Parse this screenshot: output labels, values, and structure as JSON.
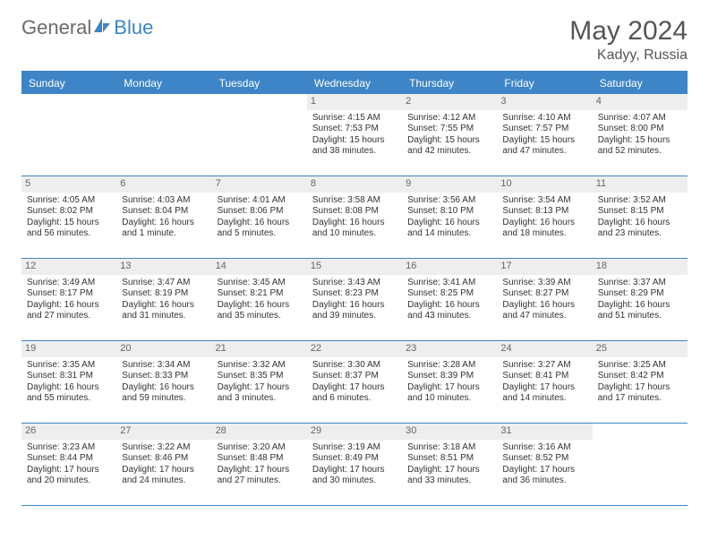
{
  "brand": {
    "general": "General",
    "blue": "Blue"
  },
  "title": "May 2024",
  "location": "Kadyy, Russia",
  "colors": {
    "accent": "#3d85c6",
    "header_text": "#ffffff",
    "daynum_bg": "#eeeeee",
    "daynum_text": "#666666",
    "body_text": "#333333",
    "title_text": "#555555",
    "page_bg": "#ffffff"
  },
  "typography": {
    "title_fontsize": 30,
    "subtitle_fontsize": 16,
    "dayhead_fontsize": 12,
    "cell_fontsize": 10
  },
  "dayNames": [
    "Sunday",
    "Monday",
    "Tuesday",
    "Wednesday",
    "Thursday",
    "Friday",
    "Saturday"
  ],
  "weeks": [
    [
      {
        "n": "",
        "sr": "",
        "ss": "",
        "dl": ""
      },
      {
        "n": "",
        "sr": "",
        "ss": "",
        "dl": ""
      },
      {
        "n": "",
        "sr": "",
        "ss": "",
        "dl": ""
      },
      {
        "n": "1",
        "sr": "4:15 AM",
        "ss": "7:53 PM",
        "dl": "15 hours and 38 minutes."
      },
      {
        "n": "2",
        "sr": "4:12 AM",
        "ss": "7:55 PM",
        "dl": "15 hours and 42 minutes."
      },
      {
        "n": "3",
        "sr": "4:10 AM",
        "ss": "7:57 PM",
        "dl": "15 hours and 47 minutes."
      },
      {
        "n": "4",
        "sr": "4:07 AM",
        "ss": "8:00 PM",
        "dl": "15 hours and 52 minutes."
      }
    ],
    [
      {
        "n": "5",
        "sr": "4:05 AM",
        "ss": "8:02 PM",
        "dl": "15 hours and 56 minutes."
      },
      {
        "n": "6",
        "sr": "4:03 AM",
        "ss": "8:04 PM",
        "dl": "16 hours and 1 minute."
      },
      {
        "n": "7",
        "sr": "4:01 AM",
        "ss": "8:06 PM",
        "dl": "16 hours and 5 minutes."
      },
      {
        "n": "8",
        "sr": "3:58 AM",
        "ss": "8:08 PM",
        "dl": "16 hours and 10 minutes."
      },
      {
        "n": "9",
        "sr": "3:56 AM",
        "ss": "8:10 PM",
        "dl": "16 hours and 14 minutes."
      },
      {
        "n": "10",
        "sr": "3:54 AM",
        "ss": "8:13 PM",
        "dl": "16 hours and 18 minutes."
      },
      {
        "n": "11",
        "sr": "3:52 AM",
        "ss": "8:15 PM",
        "dl": "16 hours and 23 minutes."
      }
    ],
    [
      {
        "n": "12",
        "sr": "3:49 AM",
        "ss": "8:17 PM",
        "dl": "16 hours and 27 minutes."
      },
      {
        "n": "13",
        "sr": "3:47 AM",
        "ss": "8:19 PM",
        "dl": "16 hours and 31 minutes."
      },
      {
        "n": "14",
        "sr": "3:45 AM",
        "ss": "8:21 PM",
        "dl": "16 hours and 35 minutes."
      },
      {
        "n": "15",
        "sr": "3:43 AM",
        "ss": "8:23 PM",
        "dl": "16 hours and 39 minutes."
      },
      {
        "n": "16",
        "sr": "3:41 AM",
        "ss": "8:25 PM",
        "dl": "16 hours and 43 minutes."
      },
      {
        "n": "17",
        "sr": "3:39 AM",
        "ss": "8:27 PM",
        "dl": "16 hours and 47 minutes."
      },
      {
        "n": "18",
        "sr": "3:37 AM",
        "ss": "8:29 PM",
        "dl": "16 hours and 51 minutes."
      }
    ],
    [
      {
        "n": "19",
        "sr": "3:35 AM",
        "ss": "8:31 PM",
        "dl": "16 hours and 55 minutes."
      },
      {
        "n": "20",
        "sr": "3:34 AM",
        "ss": "8:33 PM",
        "dl": "16 hours and 59 minutes."
      },
      {
        "n": "21",
        "sr": "3:32 AM",
        "ss": "8:35 PM",
        "dl": "17 hours and 3 minutes."
      },
      {
        "n": "22",
        "sr": "3:30 AM",
        "ss": "8:37 PM",
        "dl": "17 hours and 6 minutes."
      },
      {
        "n": "23",
        "sr": "3:28 AM",
        "ss": "8:39 PM",
        "dl": "17 hours and 10 minutes."
      },
      {
        "n": "24",
        "sr": "3:27 AM",
        "ss": "8:41 PM",
        "dl": "17 hours and 14 minutes."
      },
      {
        "n": "25",
        "sr": "3:25 AM",
        "ss": "8:42 PM",
        "dl": "17 hours and 17 minutes."
      }
    ],
    [
      {
        "n": "26",
        "sr": "3:23 AM",
        "ss": "8:44 PM",
        "dl": "17 hours and 20 minutes."
      },
      {
        "n": "27",
        "sr": "3:22 AM",
        "ss": "8:46 PM",
        "dl": "17 hours and 24 minutes."
      },
      {
        "n": "28",
        "sr": "3:20 AM",
        "ss": "8:48 PM",
        "dl": "17 hours and 27 minutes."
      },
      {
        "n": "29",
        "sr": "3:19 AM",
        "ss": "8:49 PM",
        "dl": "17 hours and 30 minutes."
      },
      {
        "n": "30",
        "sr": "3:18 AM",
        "ss": "8:51 PM",
        "dl": "17 hours and 33 minutes."
      },
      {
        "n": "31",
        "sr": "3:16 AM",
        "ss": "8:52 PM",
        "dl": "17 hours and 36 minutes."
      },
      {
        "n": "",
        "sr": "",
        "ss": "",
        "dl": ""
      }
    ]
  ],
  "labels": {
    "sunrise": "Sunrise:",
    "sunset": "Sunset:",
    "daylight": "Daylight:"
  }
}
